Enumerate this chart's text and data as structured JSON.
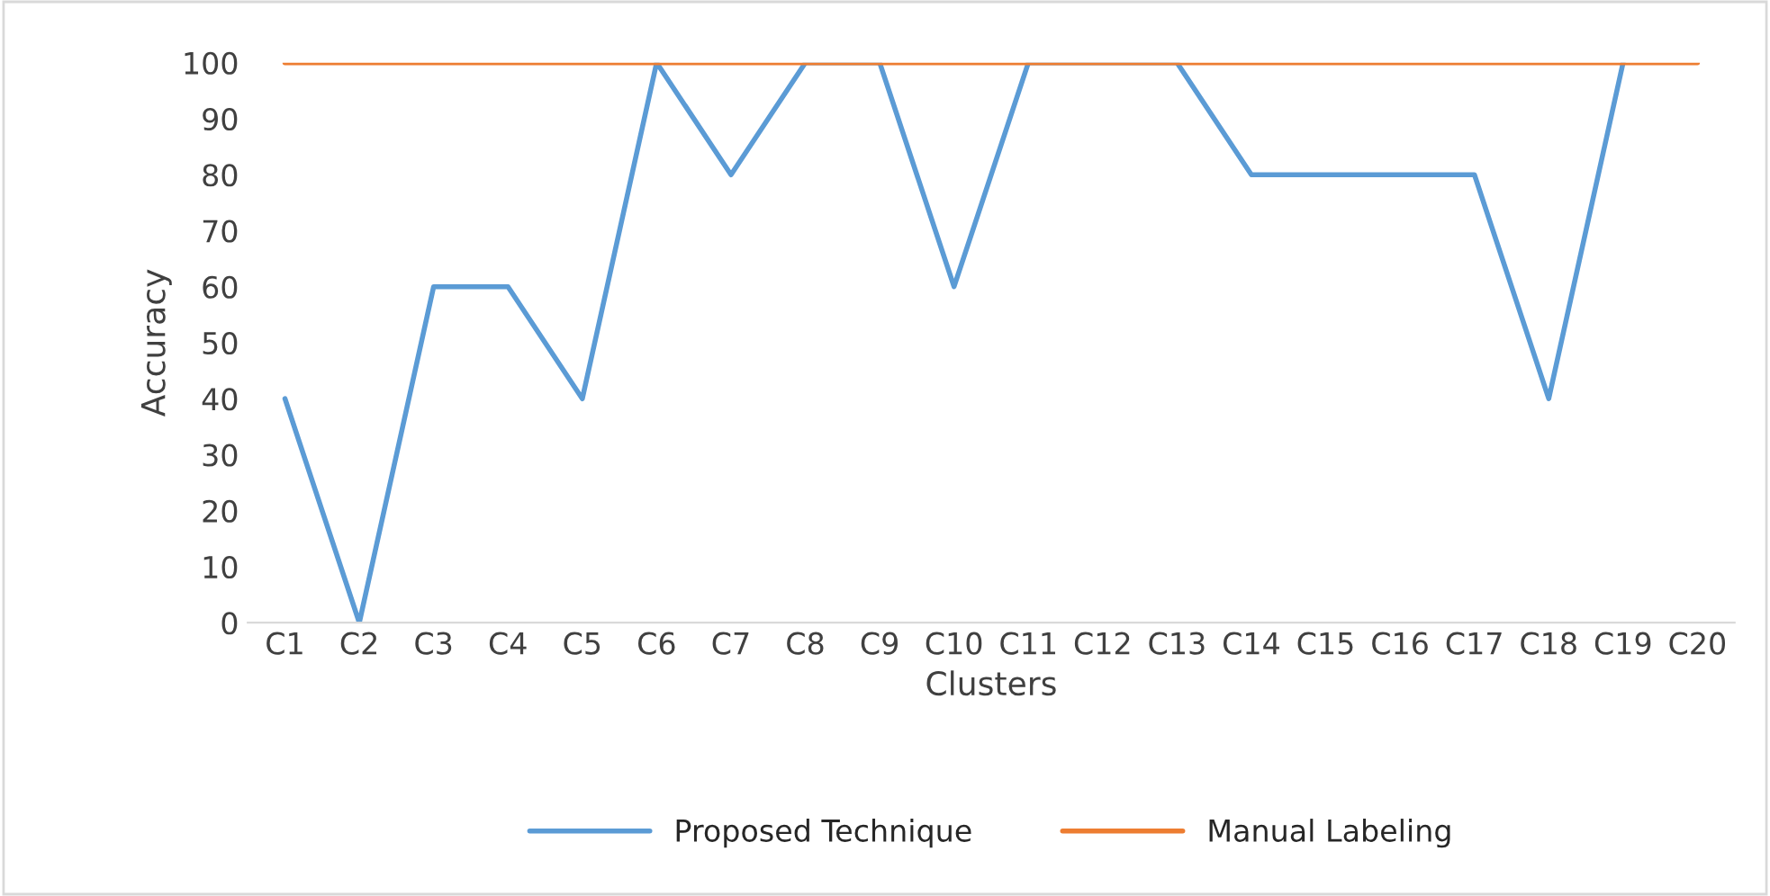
{
  "chart_data": {
    "type": "line",
    "xlabel": "Clusters",
    "ylabel": "Accuracy",
    "categories": [
      "C1",
      "C2",
      "C3",
      "C4",
      "C5",
      "C6",
      "C7",
      "C8",
      "C9",
      "C10",
      "C11",
      "C12",
      "C13",
      "C14",
      "C15",
      "C16",
      "C17",
      "C18",
      "C19",
      "C20"
    ],
    "series": [
      {
        "name": "Proposed Technique",
        "color": "#5b9bd5",
        "values": [
          40,
          0,
          60,
          60,
          40,
          100,
          80,
          100,
          100,
          60,
          100,
          null,
          100,
          80,
          80,
          80,
          80,
          40,
          100,
          null
        ]
      },
      {
        "name": "Manual Labeling",
        "color": "#ed7d31",
        "values": [
          100,
          100,
          100,
          100,
          100,
          100,
          100,
          100,
          100,
          100,
          100,
          100,
          100,
          100,
          100,
          100,
          100,
          100,
          100,
          100
        ]
      }
    ],
    "ylim": [
      0,
      100
    ],
    "yticks": [
      0,
      10,
      20,
      30,
      40,
      50,
      60,
      70,
      80,
      90,
      100
    ],
    "grid": false,
    "legend": "bottom",
    "marker": "none",
    "line_style": "solid"
  }
}
